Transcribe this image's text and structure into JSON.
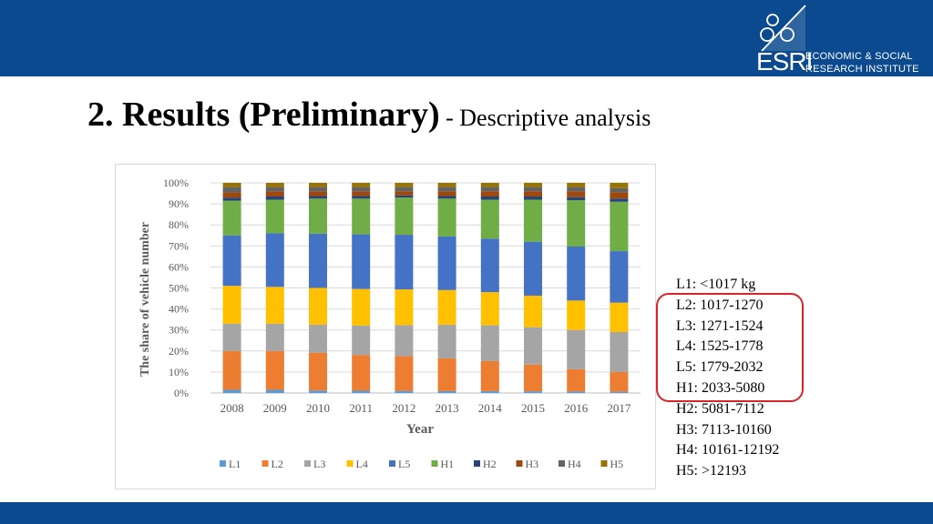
{
  "header": {
    "logo_acronym": "ESRI",
    "logo_line1": "ECONOMIC & SOCIAL",
    "logo_line2": "RESEARCH INSTITUTE"
  },
  "slide": {
    "title_main": "2. Results (Preliminary)",
    "title_sub": " - Descriptive analysis"
  },
  "side_legend": [
    "L1: <1017 kg",
    "L2: 1017-1270",
    "L3: 1271-1524",
    "L4: 1525-1778",
    "L5: 1779-2032",
    "H1: 2033-5080",
    "H2: 5081-7112",
    "H3: 7113-10160",
    "H4: 10161-12192",
    "H5:  >12193"
  ],
  "chart_data": {
    "type": "bar",
    "stacked": true,
    "percent": true,
    "title": "",
    "xlabel": "Year",
    "ylabel": "The share of vehicle number",
    "ylim": [
      0,
      100
    ],
    "yticks": [
      "0%",
      "10%",
      "20%",
      "30%",
      "40%",
      "50%",
      "60%",
      "70%",
      "80%",
      "90%",
      "100%"
    ],
    "grid": true,
    "legend_position": "bottom",
    "categories": [
      "2008",
      "2009",
      "2010",
      "2011",
      "2012",
      "2013",
      "2014",
      "2015",
      "2016",
      "2017"
    ],
    "series": [
      {
        "name": "L1",
        "color": "#5b9bd5",
        "values": [
          1.5,
          1.5,
          1.2,
          1.1,
          1.0,
          0.9,
          0.9,
          0.8,
          0.7,
          0.6
        ]
      },
      {
        "name": "L2",
        "color": "#ed7d31",
        "values": [
          18.5,
          18.5,
          18.0,
          17.0,
          16.5,
          15.6,
          14.3,
          12.7,
          10.6,
          9.4
        ]
      },
      {
        "name": "L3",
        "color": "#a5a5a5",
        "values": [
          13.0,
          13.0,
          13.3,
          14.0,
          14.8,
          16.0,
          17.0,
          17.8,
          18.7,
          19.0
        ]
      },
      {
        "name": "L4",
        "color": "#ffc000",
        "values": [
          18.0,
          17.5,
          17.5,
          17.4,
          17.0,
          16.5,
          15.8,
          15.0,
          14.0,
          14.0
        ]
      },
      {
        "name": "L5",
        "color": "#4472c4",
        "values": [
          24.0,
          25.5,
          25.8,
          26.0,
          26.0,
          25.5,
          25.5,
          25.7,
          25.7,
          24.5
        ]
      },
      {
        "name": "H1",
        "color": "#70ad47",
        "values": [
          16.5,
          16.0,
          16.7,
          17.0,
          17.7,
          18.0,
          18.5,
          20.0,
          22.0,
          23.5
        ]
      },
      {
        "name": "H2",
        "color": "#264478",
        "values": [
          1.5,
          1.5,
          1.2,
          1.2,
          1.0,
          1.2,
          1.5,
          1.5,
          1.5,
          1.5
        ]
      },
      {
        "name": "H3",
        "color": "#9e480e",
        "values": [
          2.5,
          2.5,
          2.3,
          2.3,
          2.0,
          2.3,
          2.5,
          2.5,
          2.8,
          3.0
        ]
      },
      {
        "name": "H4",
        "color": "#636363",
        "values": [
          2.5,
          2.0,
          2.0,
          2.0,
          2.0,
          2.0,
          2.0,
          2.0,
          2.0,
          2.0
        ]
      },
      {
        "name": "H5",
        "color": "#997300",
        "values": [
          2.0,
          2.0,
          2.0,
          2.0,
          2.0,
          2.0,
          2.0,
          2.0,
          2.0,
          2.5
        ]
      }
    ]
  }
}
